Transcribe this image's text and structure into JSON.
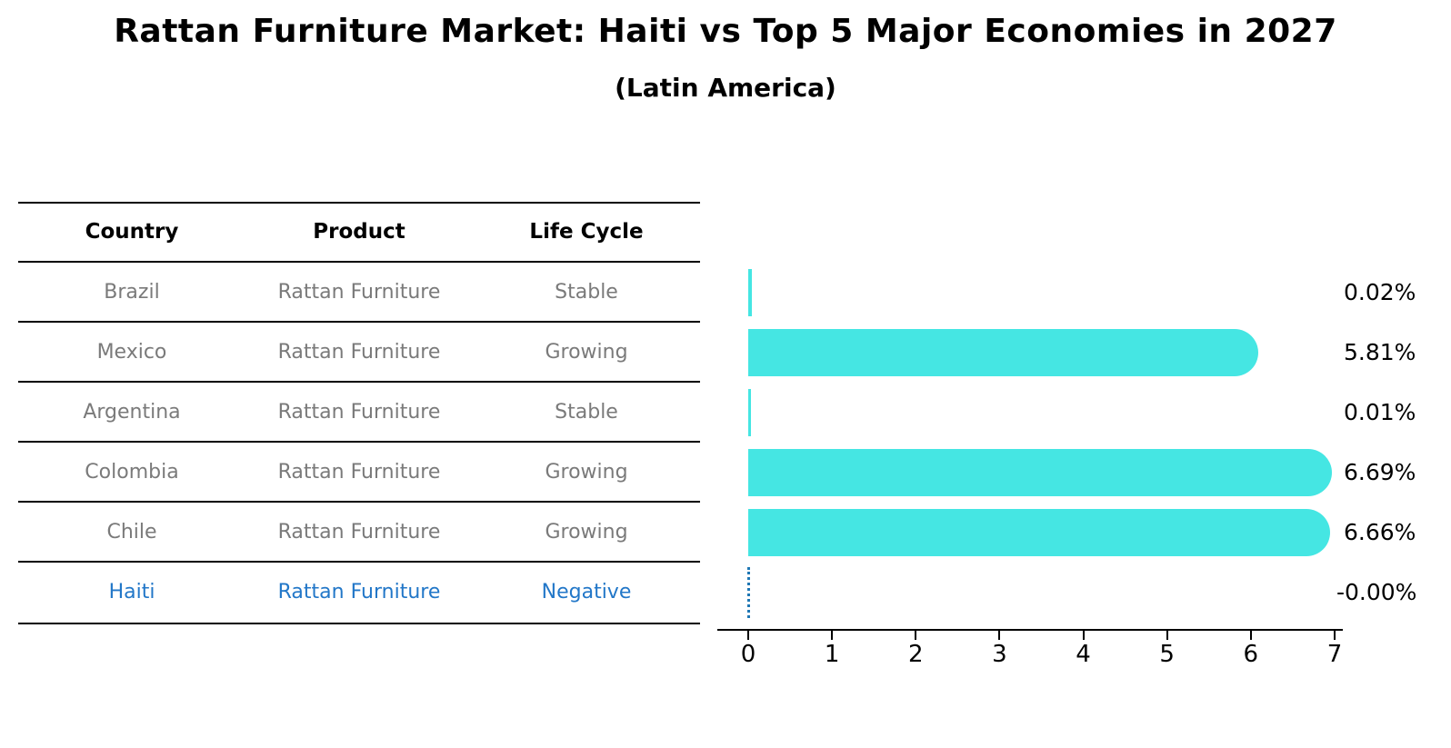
{
  "title": "Rattan Furniture Market: Haiti vs Top 5 Major Economies in 2027",
  "subtitle": "(Latin America)",
  "table": {
    "headers": [
      "Country",
      "Product",
      "Life Cycle"
    ],
    "rows": [
      {
        "country": "Brazil",
        "product": "Rattan Furniture",
        "life_cycle": "Stable",
        "highlight": false
      },
      {
        "country": "Mexico",
        "product": "Rattan Furniture",
        "life_cycle": "Growing",
        "highlight": false
      },
      {
        "country": "Argentina",
        "product": "Rattan Furniture",
        "life_cycle": "Stable",
        "highlight": false
      },
      {
        "country": "Colombia",
        "product": "Rattan Furniture",
        "life_cycle": "Growing",
        "highlight": false
      },
      {
        "country": "Chile",
        "product": "Rattan Furniture",
        "life_cycle": "Growing",
        "highlight": false
      },
      {
        "country": "Haiti",
        "product": "Rattan Furniture",
        "life_cycle": "Negative",
        "highlight": true
      }
    ]
  },
  "chart_data": {
    "type": "bar",
    "orientation": "horizontal",
    "title": "Rattan Furniture Market: Haiti vs Top 5 Major Economies in 2027",
    "subtitle": "(Latin America)",
    "categories": [
      "Brazil",
      "Mexico",
      "Argentina",
      "Colombia",
      "Chile",
      "Haiti"
    ],
    "values": [
      0.02,
      5.81,
      0.01,
      6.69,
      6.66,
      -0.0
    ],
    "value_labels": [
      "0.02%",
      "5.81%",
      "0.01%",
      "6.69%",
      "6.66%",
      "-0.00%"
    ],
    "unit": "%",
    "xlim": [
      0,
      7
    ],
    "x_ticks": [
      0,
      1,
      2,
      3,
      4,
      5,
      6,
      7
    ],
    "grid": false,
    "legend": "none",
    "bar_color": "#45e6e3",
    "zero_marker_color": "#1f77b4",
    "highlight_text_color": "#2277c8",
    "row_text_color": "#7a7a7a",
    "axis_color": "#000000"
  }
}
